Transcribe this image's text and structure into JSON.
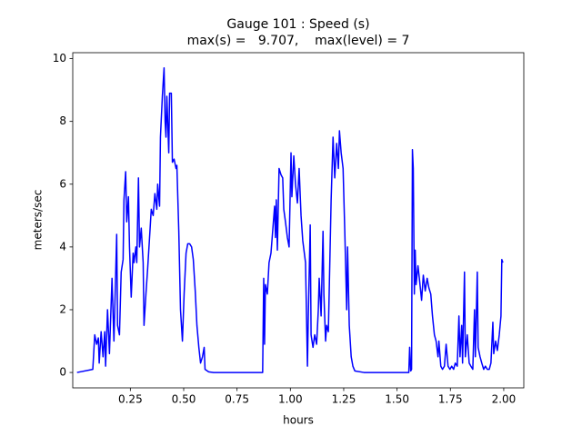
{
  "chart_data": {
    "type": "line",
    "title": "Gauge 101 : Speed (s)",
    "subtitle": "max(s) =   9.707,    max(level) = 7",
    "x_label": "hours",
    "y_label": "meters/sec",
    "color": "#0000ff",
    "xlim": [
      -0.02,
      2.094
    ],
    "ylim": [
      -0.49,
      10.19
    ],
    "xticks": [
      0.25,
      {
        "value": 0.5,
        "label": "0.50"
      },
      0.75,
      {
        "value": 1.0,
        "label": "1.00"
      },
      1.25,
      {
        "value": 1.5,
        "label": "1.50"
      },
      1.75,
      {
        "value": 2.0,
        "label": "2.00"
      }
    ],
    "yticks": [
      0,
      2,
      4,
      6,
      8,
      10
    ],
    "x": [
      0.0,
      0.074,
      0.083,
      0.092,
      0.1,
      0.104,
      0.113,
      0.122,
      0.13,
      0.134,
      0.143,
      0.152,
      0.164,
      0.173,
      0.186,
      0.19,
      0.199,
      0.207,
      0.216,
      0.22,
      0.228,
      0.233,
      0.241,
      0.246,
      0.254,
      0.263,
      0.267,
      0.276,
      0.28,
      0.288,
      0.293,
      0.301,
      0.31,
      0.314,
      0.323,
      0.331,
      0.34,
      0.348,
      0.357,
      0.365,
      0.374,
      0.378,
      0.387,
      0.391,
      0.4,
      0.408,
      0.413,
      0.417,
      0.421,
      0.43,
      0.434,
      0.442,
      0.447,
      0.455,
      0.464,
      0.468,
      0.477,
      0.485,
      0.494,
      0.502,
      0.511,
      0.519,
      0.528,
      0.537,
      0.545,
      0.554,
      0.562,
      0.571,
      0.579,
      0.588,
      0.596,
      0.6,
      0.617,
      0.64,
      0.87,
      0.875,
      0.879,
      0.883,
      0.892,
      0.9,
      0.909,
      0.917,
      0.926,
      0.93,
      0.934,
      0.939,
      0.947,
      0.956,
      0.964,
      0.969,
      0.977,
      0.986,
      0.994,
      1.003,
      1.007,
      1.016,
      1.024,
      1.033,
      1.041,
      1.05,
      1.058,
      1.071,
      1.08,
      1.084,
      1.093,
      1.097,
      1.106,
      1.114,
      1.123,
      1.131,
      1.135,
      1.144,
      1.153,
      1.157,
      1.165,
      1.17,
      1.178,
      1.187,
      1.191,
      1.2,
      1.208,
      1.217,
      1.225,
      1.23,
      1.238,
      1.247,
      1.255,
      1.264,
      1.268,
      1.276,
      1.285,
      1.293,
      1.302,
      1.345,
      1.555,
      1.559,
      1.564,
      1.568,
      1.572,
      1.576,
      1.581,
      1.585,
      1.589,
      1.598,
      1.606,
      1.615,
      1.623,
      1.632,
      1.641,
      1.649,
      1.658,
      1.666,
      1.675,
      1.683,
      1.692,
      1.696,
      1.705,
      1.713,
      1.722,
      1.73,
      1.739,
      1.748,
      1.756,
      1.765,
      1.773,
      1.782,
      1.79,
      1.795,
      1.803,
      1.807,
      1.816,
      1.82,
      1.829,
      1.838,
      1.846,
      1.855,
      1.863,
      1.867,
      1.876,
      1.88,
      1.889,
      1.897,
      1.906,
      1.914,
      1.923,
      1.932,
      1.94,
      1.949,
      1.953,
      1.962,
      1.97,
      1.979,
      1.987,
      1.991,
      1.996
    ],
    "values": [
      0,
      0.1,
      1.2,
      0.9,
      1.1,
      0.3,
      1.3,
      0.5,
      1.3,
      0.2,
      2.0,
      0.6,
      3.0,
      1.0,
      4.4,
      1.5,
      1.2,
      3.2,
      3.6,
      5.5,
      6.4,
      4.8,
      5.6,
      4.0,
      2.4,
      3.8,
      3.5,
      4.0,
      3.5,
      6.2,
      4.0,
      4.6,
      3.5,
      1.5,
      2.5,
      3.3,
      4.3,
      5.2,
      5.0,
      5.7,
      5.2,
      6.0,
      5.3,
      7.5,
      8.8,
      9.707,
      8.0,
      7.5,
      8.8,
      7.0,
      8.9,
      8.9,
      6.7,
      6.8,
      6.5,
      6.6,
      4.5,
      2.0,
      1.0,
      2.5,
      3.8,
      4.1,
      4.1,
      4.0,
      3.6,
      2.6,
      1.5,
      0.8,
      0.3,
      0.5,
      0.8,
      0.1,
      0.02,
      0,
      0,
      3.0,
      0.9,
      2.8,
      2.5,
      3.5,
      3.8,
      4.5,
      5.3,
      4.3,
      5.5,
      3.9,
      6.5,
      6.3,
      6.2,
      5.2,
      4.8,
      4.3,
      4.0,
      7.0,
      5.6,
      6.9,
      6.0,
      5.4,
      6.5,
      5.0,
      4.2,
      3.5,
      0.2,
      1.8,
      4.7,
      1.2,
      0.8,
      1.2,
      0.9,
      2.0,
      3.0,
      1.8,
      4.5,
      2.5,
      1.0,
      1.5,
      1.3,
      4.2,
      5.5,
      7.5,
      6.2,
      7.3,
      6.5,
      7.7,
      7.0,
      6.5,
      4.5,
      2.0,
      4.0,
      1.5,
      0.5,
      0.2,
      0.05,
      0,
      0,
      0.8,
      0.05,
      0.1,
      7.1,
      6.5,
      2.5,
      3.9,
      2.8,
      3.4,
      2.9,
      2.3,
      3.1,
      2.6,
      3.0,
      2.7,
      2.5,
      1.8,
      1.2,
      1.0,
      0.5,
      1.0,
      0.2,
      0.1,
      0.2,
      0.9,
      0.2,
      0.1,
      0.2,
      0.1,
      0.3,
      0.2,
      1.8,
      0.5,
      1.5,
      0.3,
      3.2,
      0.5,
      1.2,
      0.3,
      0.2,
      0.1,
      2.0,
      0.5,
      3.2,
      0.8,
      0.5,
      0.3,
      0.1,
      0.2,
      0.1,
      0.1,
      0.3,
      1.6,
      0.6,
      1.0,
      0.7,
      1.2,
      1.8,
      3.6,
      3.5
    ]
  }
}
